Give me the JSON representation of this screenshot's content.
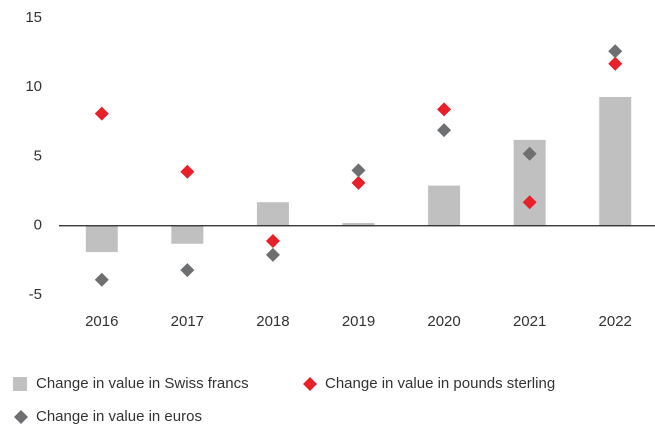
{
  "chart_data": {
    "type": "bar",
    "categories": [
      "2016",
      "2017",
      "2018",
      "2019",
      "2020",
      "2021",
      "2022"
    ],
    "series": [
      {
        "name": "Change in value in Swiss francs",
        "type": "bar",
        "color": "#c0c0c0",
        "values": [
          -1.9,
          -1.3,
          1.7,
          0.2,
          2.9,
          6.2,
          9.3
        ]
      },
      {
        "name": "Change in value in pounds sterling",
        "type": "scatter",
        "color": "#e8202a",
        "values": [
          8.1,
          3.9,
          -1.1,
          3.1,
          8.4,
          1.7,
          11.7
        ]
      },
      {
        "name": "Change in value in euros",
        "type": "scatter",
        "color": "#6d6f71",
        "values": [
          -3.9,
          -3.2,
          -2.1,
          4.0,
          6.9,
          5.2,
          12.6
        ]
      }
    ],
    "ylim": [
      -5,
      15
    ],
    "yticks": [
      -5,
      0,
      5,
      10,
      15
    ],
    "grid": false
  }
}
